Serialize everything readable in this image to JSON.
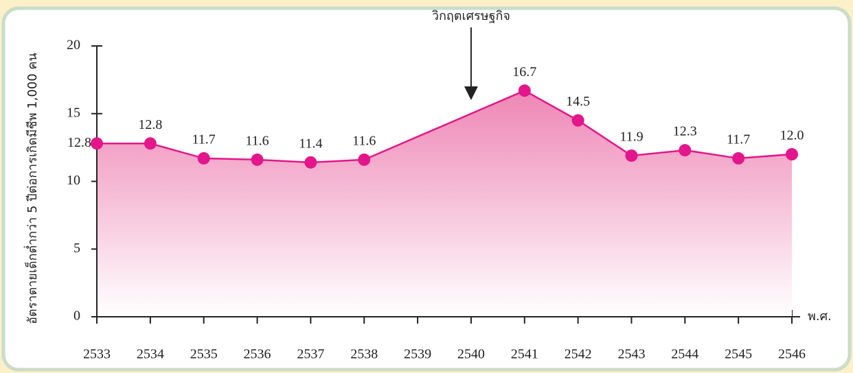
{
  "chart_data": {
    "type": "line",
    "y_label": "อัตราตายเด็กต่ำกว่า 5 ปีต่อการเกิดมีชีพ 1,000 คน",
    "x_label": "พ.ศ.",
    "annotation": {
      "text": "วิกฤตเศรษฐกิจ",
      "x": 2540
    },
    "x": [
      2533,
      2534,
      2535,
      2536,
      2537,
      2538,
      2541,
      2542,
      2543,
      2544,
      2545,
      2546
    ],
    "values": [
      12.8,
      12.8,
      11.7,
      11.6,
      11.4,
      11.6,
      16.7,
      14.5,
      11.9,
      12.3,
      11.7,
      12.0
    ],
    "value_labels": [
      "12.8",
      "12.8",
      "11.7",
      "11.6",
      "11.4",
      "11.6",
      "16.7",
      "14.5",
      "11.9",
      "12.3",
      "11.7",
      "12.0"
    ],
    "color": "#e3168b",
    "xlim": [
      2533,
      2546
    ],
    "xticks": [
      2533,
      2534,
      2535,
      2536,
      2537,
      2538,
      2539,
      2540,
      2541,
      2542,
      2543,
      2544,
      2545,
      2546
    ],
    "ylim": [
      0,
      20
    ],
    "yticks": [
      0,
      5,
      10,
      15,
      20
    ]
  }
}
